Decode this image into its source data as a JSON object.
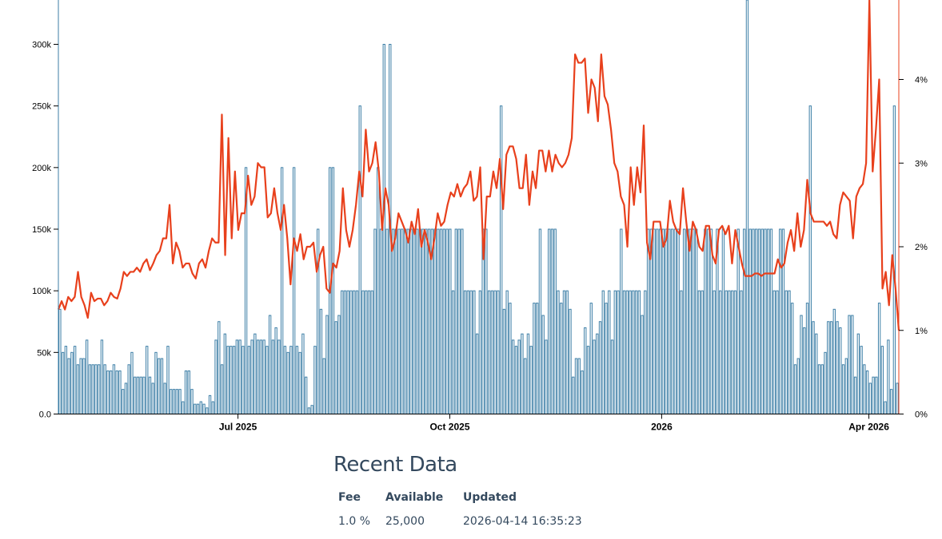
{
  "chart_data": {
    "type": "bar+line",
    "x_start": "2025-04-14",
    "x_end": "2026-04-14",
    "xticks": [
      "Jul 2025",
      "Oct 2025",
      "2026",
      "Apr 2026"
    ],
    "xtick_dates": [
      "2025-07-01",
      "2025-10-01",
      "2026-01-01",
      "2026-04-01"
    ],
    "y_left": {
      "ylim": [
        0,
        340000
      ],
      "ticks": [
        0,
        50000,
        100000,
        150000,
        200000,
        250000,
        300000
      ],
      "tick_labels": [
        "0.0",
        "50k",
        "100k",
        "150k",
        "200k",
        "250k",
        "300k"
      ]
    },
    "y_right": {
      "ylim": [
        0,
        5
      ],
      "ticks": [
        0,
        1,
        2,
        3,
        4
      ],
      "tick_labels": [
        "0%",
        "1%",
        "2%",
        "3%",
        "4%"
      ]
    },
    "series": [
      {
        "kind": "bar",
        "axis": "left",
        "color": "#3c7ea6",
        "fill": "#ffffff",
        "values": [
          85000,
          50000,
          55000,
          45000,
          50000,
          55000,
          40000,
          45000,
          45000,
          60000,
          40000,
          40000,
          40000,
          40000,
          60000,
          40000,
          35000,
          35000,
          40000,
          35000,
          35000,
          20000,
          25000,
          40000,
          50000,
          30000,
          30000,
          30000,
          30000,
          55000,
          30000,
          25000,
          50000,
          45000,
          45000,
          25000,
          55000,
          20000,
          20000,
          20000,
          20000,
          10000,
          35000,
          35000,
          20000,
          8000,
          8000,
          10000,
          8000,
          5000,
          15000,
          10000,
          60000,
          75000,
          40000,
          65000,
          55000,
          55000,
          55000,
          60000,
          60000,
          55000,
          200000,
          55000,
          60000,
          65000,
          60000,
          60000,
          60000,
          55000,
          80000,
          60000,
          70000,
          60000,
          200000,
          55000,
          50000,
          55000,
          200000,
          55000,
          50000,
          65000,
          30000,
          5000,
          7000,
          55000,
          150000,
          85000,
          45000,
          80000,
          200000,
          200000,
          75000,
          80000,
          100000,
          100000,
          100000,
          100000,
          100000,
          100000,
          250000,
          100000,
          100000,
          100000,
          100000,
          150000,
          200000,
          150000,
          300000,
          150000,
          300000,
          150000,
          150000,
          150000,
          150000,
          150000,
          150000,
          150000,
          150000,
          150000,
          150000,
          150000,
          150000,
          150000,
          150000,
          150000,
          150000,
          150000,
          150000,
          150000,
          150000,
          100000,
          150000,
          150000,
          150000,
          100000,
          100000,
          100000,
          100000,
          65000,
          100000,
          150000,
          150000,
          100000,
          100000,
          100000,
          100000,
          250000,
          85000,
          100000,
          90000,
          60000,
          55000,
          60000,
          65000,
          45000,
          65000,
          55000,
          90000,
          90000,
          150000,
          80000,
          60000,
          150000,
          150000,
          150000,
          100000,
          90000,
          100000,
          100000,
          85000,
          30000,
          45000,
          45000,
          35000,
          70000,
          55000,
          90000,
          60000,
          65000,
          75000,
          100000,
          90000,
          100000,
          60000,
          100000,
          100000,
          150000,
          100000,
          100000,
          100000,
          100000,
          100000,
          100000,
          80000,
          100000,
          150000,
          150000,
          150000,
          150000,
          150000,
          150000,
          150000,
          150000,
          150000,
          150000,
          150000,
          100000,
          150000,
          150000,
          150000,
          150000,
          150000,
          100000,
          100000,
          150000,
          150000,
          150000,
          100000,
          150000,
          100000,
          150000,
          100000,
          100000,
          100000,
          100000,
          150000,
          100000,
          150000,
          340000,
          150000,
          150000,
          150000,
          150000,
          150000,
          150000,
          150000,
          150000,
          100000,
          100000,
          150000,
          150000,
          100000,
          100000,
          90000,
          40000,
          45000,
          80000,
          70000,
          90000,
          250000,
          75000,
          65000,
          40000,
          40000,
          50000,
          75000,
          75000,
          85000,
          75000,
          70000,
          40000,
          45000,
          80000,
          80000,
          30000,
          65000,
          55000,
          40000,
          35000,
          25000,
          30000,
          30000,
          90000,
          55000,
          10000,
          60000,
          20000,
          250000,
          25000
        ]
      },
      {
        "kind": "line",
        "axis": "right",
        "color": "#e8401c",
        "values": [
          1.25,
          1.35,
          1.25,
          1.4,
          1.35,
          1.4,
          1.7,
          1.4,
          1.3,
          1.15,
          1.45,
          1.35,
          1.38,
          1.38,
          1.3,
          1.35,
          1.45,
          1.4,
          1.38,
          1.5,
          1.7,
          1.65,
          1.7,
          1.7,
          1.75,
          1.7,
          1.8,
          1.85,
          1.72,
          1.8,
          1.9,
          1.95,
          2.1,
          2.1,
          2.5,
          1.8,
          2.05,
          1.95,
          1.75,
          1.8,
          1.8,
          1.68,
          1.62,
          1.8,
          1.85,
          1.75,
          1.95,
          2.1,
          2.05,
          2.05,
          3.58,
          1.9,
          3.3,
          2.1,
          2.9,
          2.2,
          2.4,
          2.4,
          2.85,
          2.5,
          2.6,
          3.0,
          2.95,
          2.95,
          2.35,
          2.4,
          2.7,
          2.4,
          2.2,
          2.5,
          2.1,
          1.55,
          2.1,
          1.95,
          2.15,
          1.85,
          2.0,
          2.0,
          2.05,
          1.7,
          1.9,
          2.0,
          1.5,
          1.45,
          1.8,
          1.75,
          1.95,
          2.7,
          2.2,
          2.0,
          2.2,
          2.5,
          2.9,
          2.6,
          3.4,
          2.9,
          3.0,
          3.25,
          2.9,
          2.2,
          2.7,
          2.5,
          1.95,
          2.1,
          2.4,
          2.3,
          2.2,
          2.05,
          2.3,
          2.15,
          2.45,
          2.0,
          2.2,
          2.05,
          1.85,
          2.1,
          2.4,
          2.25,
          2.3,
          2.5,
          2.65,
          2.6,
          2.75,
          2.6,
          2.7,
          2.75,
          2.9,
          2.55,
          2.6,
          2.95,
          1.85,
          2.6,
          2.6,
          2.9,
          2.7,
          3.05,
          2.45,
          3.1,
          3.2,
          3.2,
          3.05,
          2.7,
          2.7,
          3.1,
          2.5,
          2.9,
          2.7,
          3.15,
          3.15,
          2.9,
          3.15,
          2.9,
          3.1,
          3.0,
          2.95,
          3.0,
          3.1,
          3.3,
          4.3,
          4.2,
          4.2,
          4.25,
          3.6,
          4.0,
          3.9,
          3.5,
          4.3,
          3.8,
          3.7,
          3.4,
          3.0,
          2.9,
          2.6,
          2.5,
          2.0,
          2.95,
          2.5,
          2.95,
          2.65,
          3.45,
          2.05,
          1.85,
          2.3,
          2.3,
          2.3,
          2.0,
          2.1,
          2.55,
          2.3,
          2.2,
          2.15,
          2.7,
          2.3,
          1.95,
          2.3,
          2.2,
          2.0,
          1.95,
          2.25,
          2.25,
          1.9,
          1.8,
          2.2,
          2.25,
          2.15,
          2.25,
          1.8,
          2.2,
          2.0,
          1.8,
          1.65,
          1.65,
          1.65,
          1.68,
          1.68,
          1.65,
          1.68,
          1.68,
          1.68,
          1.68,
          1.85,
          1.75,
          1.8,
          2.05,
          2.2,
          1.95,
          2.4,
          2.0,
          2.2,
          2.8,
          2.4,
          2.3,
          2.3,
          2.3,
          2.3,
          2.25,
          2.3,
          2.15,
          2.1,
          2.5,
          2.65,
          2.6,
          2.55,
          2.1,
          2.6,
          2.7,
          2.75,
          3.0,
          5.0,
          2.9,
          3.4,
          4.0,
          1.5,
          1.7,
          1.3,
          1.9,
          1.5,
          1.0
        ]
      }
    ]
  },
  "recent": {
    "title": "Recent Data",
    "headers": {
      "fee": "Fee",
      "available": "Available",
      "updated": "Updated"
    },
    "row": {
      "fee": "1.0 %",
      "available": "25,000",
      "updated": "2026-04-14 16:35:23"
    }
  }
}
